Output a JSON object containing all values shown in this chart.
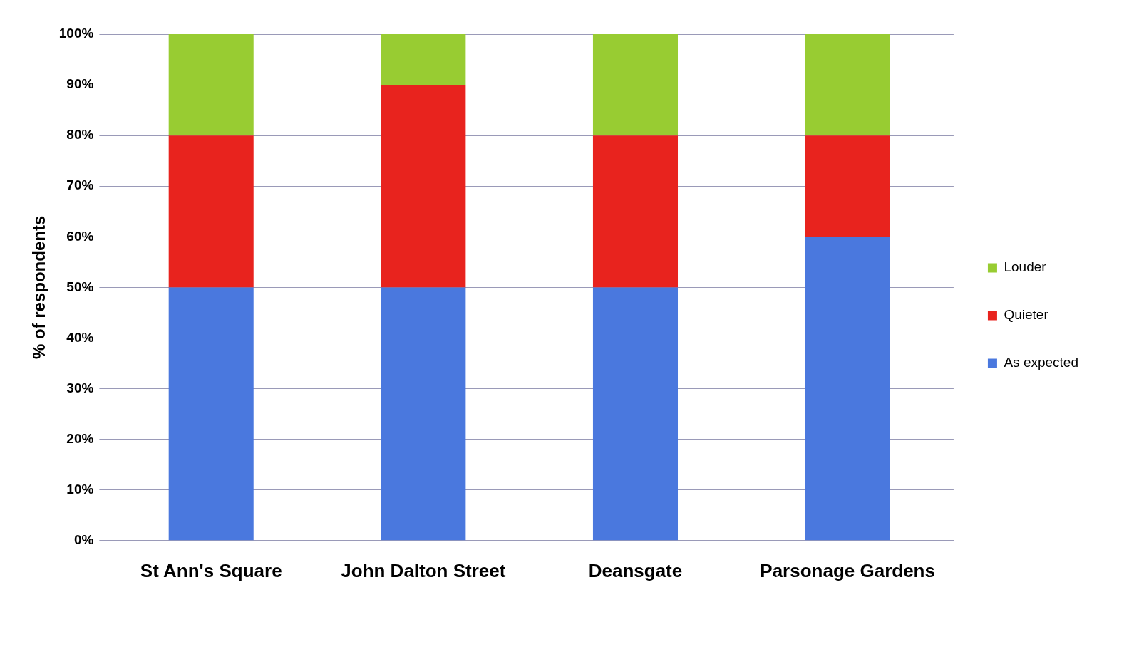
{
  "chart_data": {
    "type": "bar",
    "stacked": true,
    "ylabel": "% of respondents",
    "categories": [
      "St Ann's Square",
      "John Dalton Street",
      "Deansgate",
      "Parsonage Gardens"
    ],
    "series": [
      {
        "name": "As expected",
        "color": "#4a78de",
        "values": [
          50,
          50,
          50,
          60
        ]
      },
      {
        "name": "Quieter",
        "color": "#e8231e",
        "values": [
          30,
          40,
          30,
          20
        ]
      },
      {
        "name": "Louder",
        "color": "#98cc32",
        "values": [
          20,
          10,
          20,
          20
        ]
      }
    ],
    "ylim": [
      0,
      100
    ],
    "yticks": [
      {
        "value": 0,
        "label": "0%"
      },
      {
        "value": 10,
        "label": "10%"
      },
      {
        "value": 20,
        "label": "20%"
      },
      {
        "value": 30,
        "label": "30%"
      },
      {
        "value": 40,
        "label": "40%"
      },
      {
        "value": 50,
        "label": "50%"
      },
      {
        "value": 60,
        "label": "60%"
      },
      {
        "value": 70,
        "label": "70%"
      },
      {
        "value": 80,
        "label": "80%"
      },
      {
        "value": 90,
        "label": "90%"
      },
      {
        "value": 100,
        "label": "100%"
      }
    ],
    "grid": "y",
    "legend": "right"
  }
}
